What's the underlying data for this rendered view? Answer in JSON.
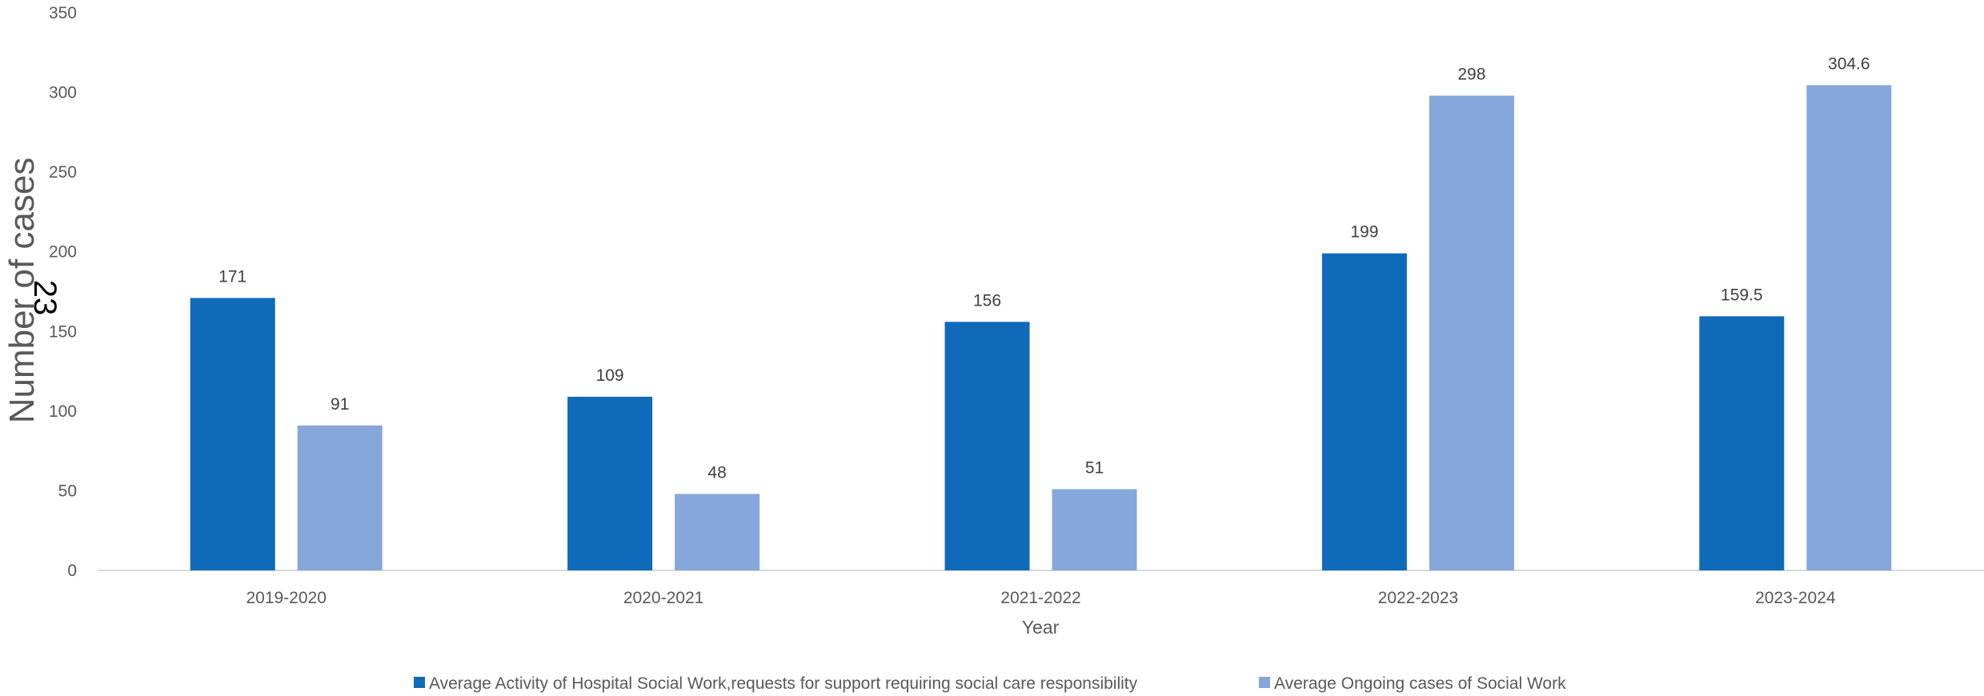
{
  "chart_data": {
    "type": "bar",
    "categories": [
      "2019-2020",
      "2020-2021",
      "2021-2022",
      "2022-2023",
      "2023-2024"
    ],
    "series": [
      {
        "name": "Average Activity  of Hospital Social Work,requests for support requiring social care responsibility",
        "values": [
          171,
          109,
          156,
          199,
          159.5
        ],
        "labels": [
          "171",
          "109",
          "156",
          "199",
          "159.5"
        ],
        "color": "#0f6aba"
      },
      {
        "name": "Average Ongoing cases of Social Work",
        "values": [
          91,
          48,
          51,
          298,
          304.6
        ],
        "labels": [
          "91",
          "48",
          "51",
          "298",
          "304.6"
        ],
        "color": "#86a7dc"
      }
    ],
    "xlabel": "Year",
    "ylabel": "Number of cases",
    "ylim": [
      0,
      350
    ],
    "yticks": [
      "0",
      "50",
      "100",
      "150",
      "200",
      "250",
      "300",
      "350"
    ],
    "grid": false,
    "legend_position": "bottom",
    "overlay_text": "23"
  }
}
